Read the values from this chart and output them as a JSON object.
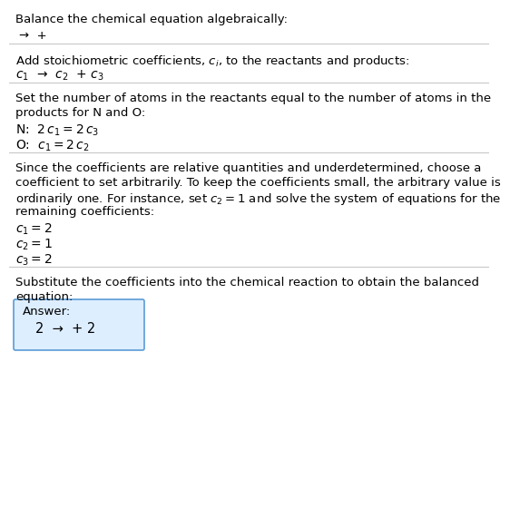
{
  "title": "Balance the chemical equation algebraically:",
  "eq0": "→  +",
  "sec1_header": "Add stoichiometric coefficients, $c_i$, to the reactants and products:",
  "sec1_eq": "$c_1$  →  $c_2$  + $c_3$",
  "sec2_header1": "Set the number of atoms in the reactants equal to the number of atoms in the",
  "sec2_header2": "products for N and O:",
  "sec2_n": "N:  $2\\,c_1 = 2\\,c_3$",
  "sec2_o": "O:  $c_1 = 2\\,c_2$",
  "sec3_header1": "Since the coefficients are relative quantities and underdetermined, choose a",
  "sec3_header2": "coefficient to set arbitrarily. To keep the coefficients small, the arbitrary value is",
  "sec3_header3": "ordinarily one. For instance, set $c_2 = 1$ and solve the system of equations for the",
  "sec3_header4": "remaining coefficients:",
  "sec3_c1": "$c_1 = 2$",
  "sec3_c2": "$c_2 = 1$",
  "sec3_c3": "$c_3 = 2$",
  "sec4_header1": "Substitute the coefficients into the chemical reaction to obtain the balanced",
  "sec4_header2": "equation:",
  "answer_label": "Answer:",
  "answer_eq": "2  →  + 2",
  "answer_box_color": "#ddeeff",
  "answer_box_border": "#5b9bd5",
  "bg_color": "#ffffff",
  "text_color": "#000000",
  "line_color": "#c8c8c8",
  "font_size": 9.5
}
